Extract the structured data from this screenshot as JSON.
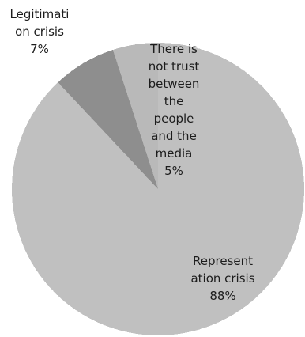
{
  "chart_data": {
    "type": "pie",
    "categories": [
      "Represent\nation crisis",
      "Legitimati\non crisis",
      "There is\nnot trust\nbetween\nthe\npeople\nand the\nmedia"
    ],
    "values": [
      88,
      7,
      5
    ],
    "colors": [
      "#c0c0c0",
      "#8e8e8e",
      "#b9b9b9"
    ],
    "legend": false
  }
}
